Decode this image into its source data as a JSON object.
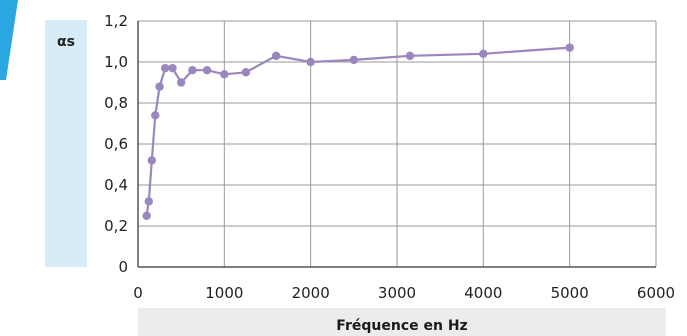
{
  "chart_data": {
    "type": "line",
    "title": "",
    "xlabel": "Fréquence en Hz",
    "ylabel": "αs",
    "xlim": [
      0,
      6000
    ],
    "ylim": [
      0,
      1.2
    ],
    "x_ticks": [
      "0",
      "1000",
      "2000",
      "3000",
      "4000",
      "5000",
      "6000"
    ],
    "y_ticks": [
      "0",
      "0,2",
      "0,4",
      "0,6",
      "0,8",
      "1,0",
      "1,2"
    ],
    "grid": true,
    "legend": "none",
    "series": [
      {
        "color": "#9a87bd",
        "x": [
          100,
          125,
          160,
          200,
          250,
          315,
          400,
          500,
          630,
          800,
          1000,
          1250,
          1600,
          2000,
          2500,
          3150,
          4000,
          5000
        ],
        "values": [
          0.25,
          0.32,
          0.52,
          0.74,
          0.88,
          0.97,
          0.97,
          0.9,
          0.96,
          0.96,
          0.94,
          0.95,
          1.03,
          1.0,
          1.01,
          1.03,
          1.04,
          1.07
        ]
      }
    ]
  },
  "colors": {
    "accent": "#2aa7e0",
    "ylabel_bg": "#d6ecf7",
    "xlabel_bg": "#ececec",
    "grid": "#9a9a9a",
    "axis": "#555555",
    "series": "#9a87bd"
  }
}
